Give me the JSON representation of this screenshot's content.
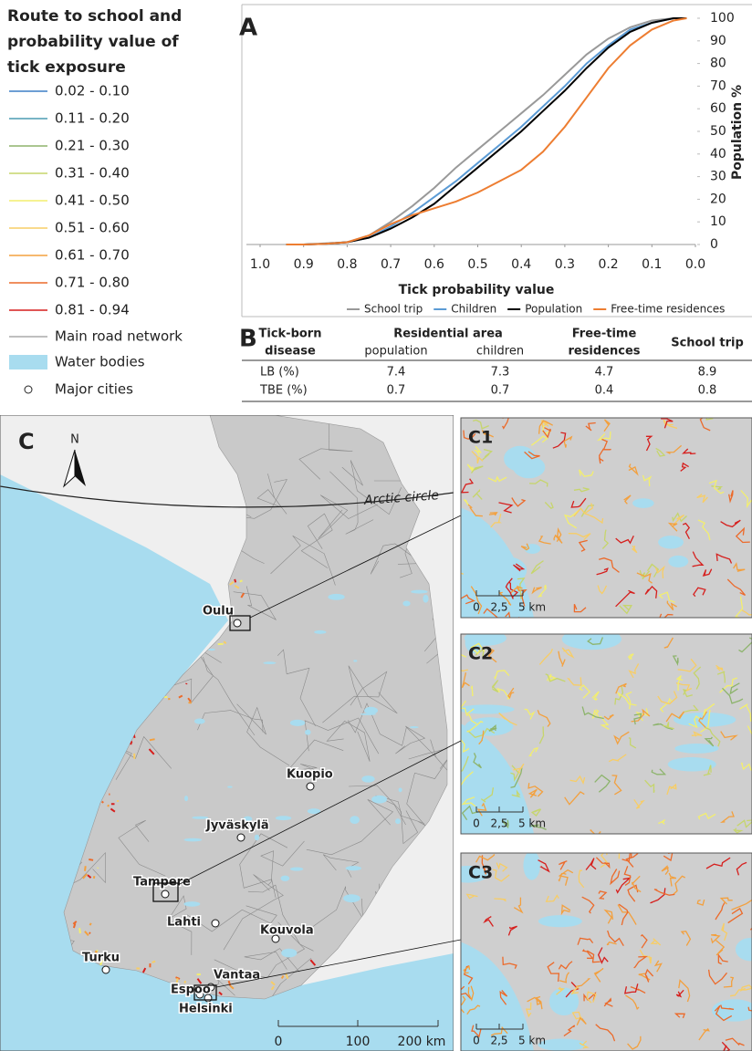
{
  "legend": {
    "title": "Route to school and probability value of tick exposure",
    "items": [
      {
        "label": "0.02 - 0.10",
        "color": "#3d7fc6"
      },
      {
        "label": "0.11 - 0.20",
        "color": "#4b9bb2"
      },
      {
        "label": "0.21 - 0.30",
        "color": "#8db46c"
      },
      {
        "label": "0.31 - 0.40",
        "color": "#c6d56c"
      },
      {
        "label": "0.41 - 0.50",
        "color": "#f3ee6e"
      },
      {
        "label": "0.51 - 0.60",
        "color": "#f7cd66"
      },
      {
        "label": "0.61 - 0.70",
        "color": "#f3a03e"
      },
      {
        "label": "0.71 - 0.80",
        "color": "#ec6a2a"
      },
      {
        "label": "0.81 - 0.94",
        "color": "#d61f1d"
      }
    ],
    "road": "Main road network",
    "water": "Water bodies",
    "cities": "Major cities"
  },
  "chart_data": {
    "type": "line",
    "panel_label": "A",
    "xlabel": "Tick probability value",
    "ylabel": "Population %",
    "x": [
      0.94,
      0.9,
      0.85,
      0.8,
      0.75,
      0.7,
      0.65,
      0.6,
      0.55,
      0.5,
      0.45,
      0.4,
      0.35,
      0.3,
      0.25,
      0.2,
      0.15,
      0.1,
      0.05,
      0.02
    ],
    "series": [
      {
        "name": "School trip",
        "color": "#999999",
        "values": [
          0,
          0,
          0.5,
          1,
          4,
          10,
          17,
          25,
          34,
          42,
          50,
          58,
          66,
          75,
          84,
          91,
          96,
          99,
          100,
          100
        ]
      },
      {
        "name": "Children",
        "color": "#5b9bd5",
        "values": [
          0,
          0,
          0.3,
          1,
          3,
          8,
          14,
          21,
          28,
          36,
          44,
          52,
          61,
          70,
          80,
          88,
          95,
          98,
          100,
          100
        ]
      },
      {
        "name": "Population",
        "color": "#000000",
        "values": [
          0,
          0,
          0.3,
          1,
          3,
          7,
          12,
          18,
          26,
          34,
          42,
          50,
          59,
          68,
          78,
          87,
          94,
          98,
          100,
          100
        ]
      },
      {
        "name": "Free-time residences",
        "color": "#ed7d31",
        "values": [
          0,
          0,
          0.3,
          1,
          4,
          9,
          13,
          16,
          19,
          23,
          28,
          33,
          41,
          52,
          65,
          78,
          88,
          95,
          99,
          100
        ]
      }
    ],
    "xlim": [
      1,
      0
    ],
    "xticks": [
      {
        "value": 1,
        "label": "1.0"
      },
      0.9,
      0.8,
      0.7,
      0.6,
      0.5,
      0.4,
      0.3,
      0.2,
      0.1,
      {
        "value": 0,
        "label": "0.0"
      }
    ],
    "ylim": [
      0,
      100
    ],
    "yticks": [
      0,
      10,
      20,
      30,
      40,
      50,
      60,
      70,
      80,
      90,
      100
    ],
    "y_axis_side": "right"
  },
  "table": {
    "panel_label": "B",
    "header": {
      "disease": [
        "Tick-born",
        "disease"
      ],
      "group": "Residential area",
      "population": "population",
      "children": "children",
      "free_time": [
        "Free-time",
        "residences"
      ],
      "school": "School trip"
    },
    "rows": [
      [
        "LB (%)",
        7.4,
        7.3,
        4.7,
        8.9
      ],
      [
        "TBE (%)",
        0.7,
        0.7,
        0.4,
        0.8
      ]
    ]
  },
  "map": {
    "panel_label": "C",
    "north": "N",
    "arctic": "Arctic circle",
    "cities": [
      "Oulu",
      "Kuopio",
      "Jyväskylä",
      "Tampere",
      "Lahti",
      "Kouvola",
      "Turku",
      "Vantaa",
      "Espoo",
      "Helsinki"
    ],
    "scale": [
      "0",
      "100",
      "200 km"
    ],
    "insets": [
      {
        "label": "C1",
        "scale": [
          "0",
          "2,5",
          "5 km"
        ]
      },
      {
        "label": "C2",
        "scale": [
          "0",
          "2,5",
          "5 km"
        ]
      },
      {
        "label": "C3",
        "scale": [
          "0",
          "2,5",
          "5 km"
        ]
      }
    ]
  }
}
